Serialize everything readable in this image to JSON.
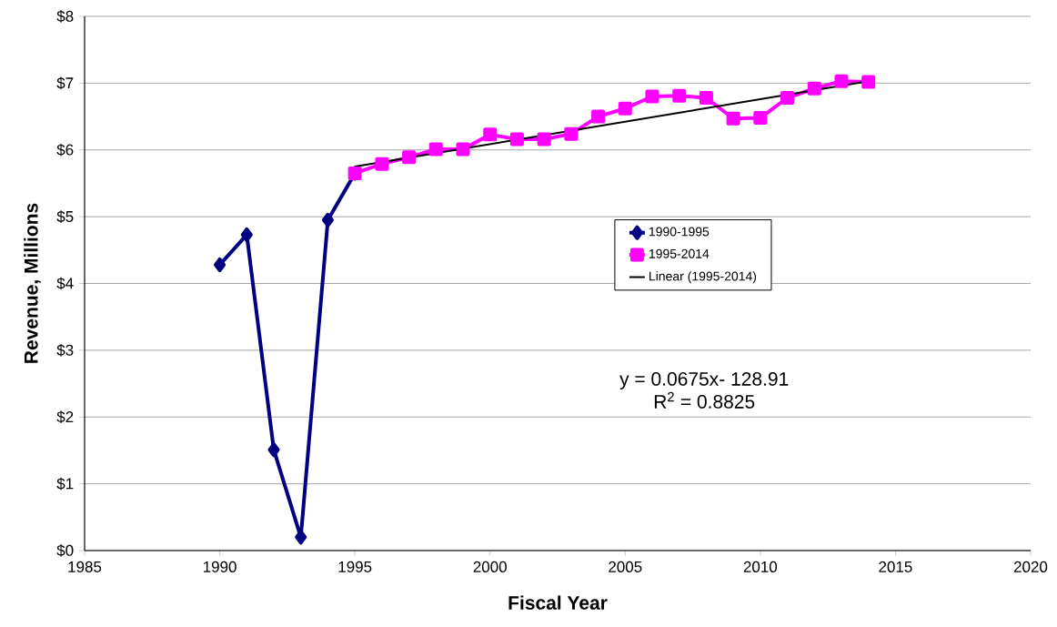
{
  "chart_data": {
    "type": "line",
    "xlabel": "Fiscal Year",
    "ylabel": "Revenue, Millions",
    "xlim": [
      1985,
      2020
    ],
    "xticks": [
      1985,
      1990,
      1995,
      2000,
      2005,
      2010,
      2015,
      2020
    ],
    "ylim": [
      0,
      8
    ],
    "yticks": [
      {
        "value": 0,
        "label": "$0"
      },
      {
        "value": 1,
        "label": "$1"
      },
      {
        "value": 2,
        "label": "$2"
      },
      {
        "value": 3,
        "label": "$3"
      },
      {
        "value": 4,
        "label": "$4"
      },
      {
        "value": 5,
        "label": "$5"
      },
      {
        "value": 6,
        "label": "$6"
      },
      {
        "value": 7,
        "label": "$7"
      },
      {
        "value": 8,
        "label": "$8"
      }
    ],
    "grid": "y",
    "legend": "right",
    "series": [
      {
        "name": "1990-1995",
        "color": "#000080",
        "marker": "diamond",
        "x": [
          1990,
          1991,
          1992,
          1993,
          1994,
          1995
        ],
        "values": [
          4.28,
          4.73,
          1.51,
          0.2,
          4.95,
          5.65
        ]
      },
      {
        "name": "1995-2014",
        "color": "#ff00ff",
        "marker": "square",
        "x": [
          1995,
          1996,
          1997,
          1998,
          1999,
          2000,
          2001,
          2002,
          2003,
          2004,
          2005,
          2006,
          2007,
          2008,
          2009,
          2010,
          2011,
          2012,
          2013,
          2014
        ],
        "values": [
          5.65,
          5.79,
          5.89,
          6.01,
          6.01,
          6.23,
          6.16,
          6.16,
          6.24,
          6.5,
          6.62,
          6.8,
          6.81,
          6.78,
          6.47,
          6.48,
          6.78,
          6.92,
          7.03,
          7.02
        ]
      },
      {
        "name": "Linear (1995-2014)",
        "color": "#000000",
        "marker": "none",
        "x": [
          1995,
          2014
        ],
        "values": [
          5.75,
          7.03
        ]
      }
    ],
    "annotations": [
      "y = 0.0675x- 128.91",
      "R$^{2}$ = 0.8825"
    ]
  }
}
